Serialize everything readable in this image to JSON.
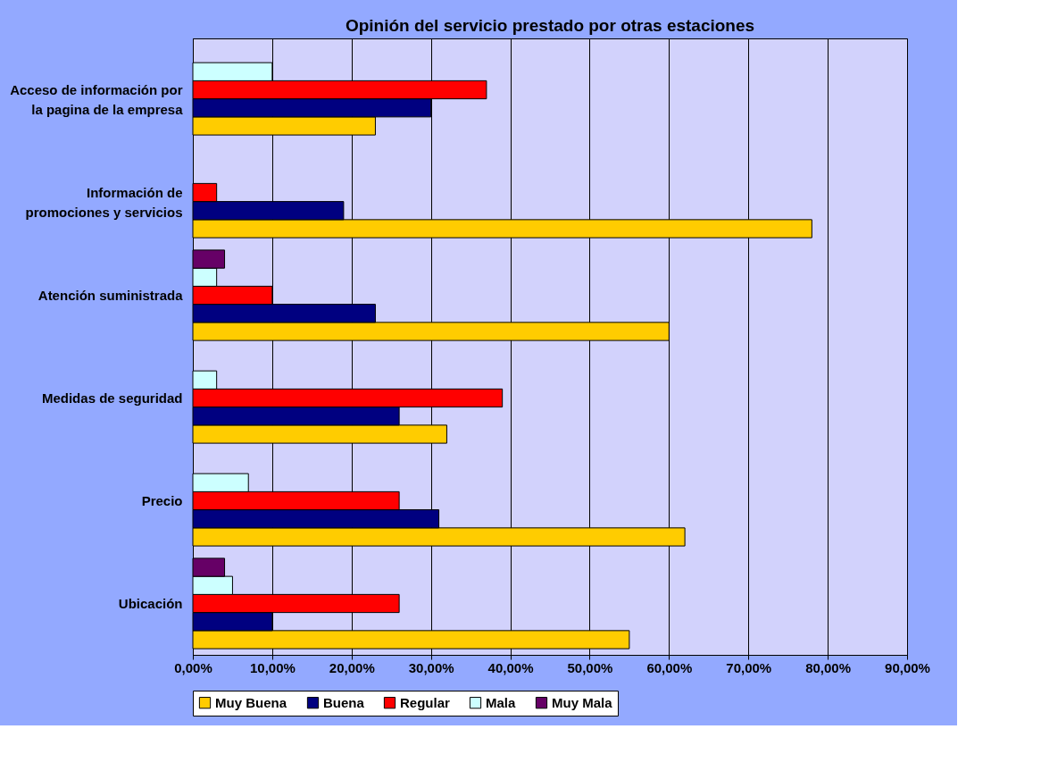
{
  "chart_data": {
    "type": "bar",
    "orientation": "horizontal",
    "title": "Opinión del servicio prestado por otras estaciones",
    "categories": [
      "Acceso de información por la pagina de la empresa",
      "Información de promociones y servicios",
      "Atención suministrada",
      "Medidas de seguridad",
      "Precio",
      "Ubicación"
    ],
    "series": [
      {
        "name": "Muy Buena",
        "color": "#ffcc00",
        "values": [
          23,
          78,
          60,
          32,
          62,
          55
        ]
      },
      {
        "name": "Buena",
        "color": "#000080",
        "values": [
          30,
          19,
          23,
          26,
          31,
          10
        ]
      },
      {
        "name": "Regular",
        "color": "#ff0000",
        "values": [
          37,
          3,
          10,
          39,
          26,
          26
        ]
      },
      {
        "name": "Mala",
        "color": "#ccffff",
        "values": [
          10,
          null,
          3,
          3,
          7,
          5
        ]
      },
      {
        "name": "Muy Mala",
        "color": "#660066",
        "values": [
          null,
          null,
          4,
          null,
          null,
          4
        ]
      }
    ],
    "xlim": [
      0,
      90
    ],
    "xticks": [
      {
        "value": 0,
        "label": "0,00%"
      },
      {
        "value": 10,
        "label": "10,00%"
      },
      {
        "value": 20,
        "label": "20,00%"
      },
      {
        "value": 30,
        "label": "30,00%"
      },
      {
        "value": 40,
        "label": "40,00%"
      },
      {
        "value": 50,
        "label": "50,00%"
      },
      {
        "value": 60,
        "label": "60,00%"
      },
      {
        "value": 70,
        "label": "70,00%"
      },
      {
        "value": 80,
        "label": "80,00%"
      },
      {
        "value": 90,
        "label": "90,00%"
      }
    ],
    "grid": "x",
    "legend": "bottom"
  }
}
